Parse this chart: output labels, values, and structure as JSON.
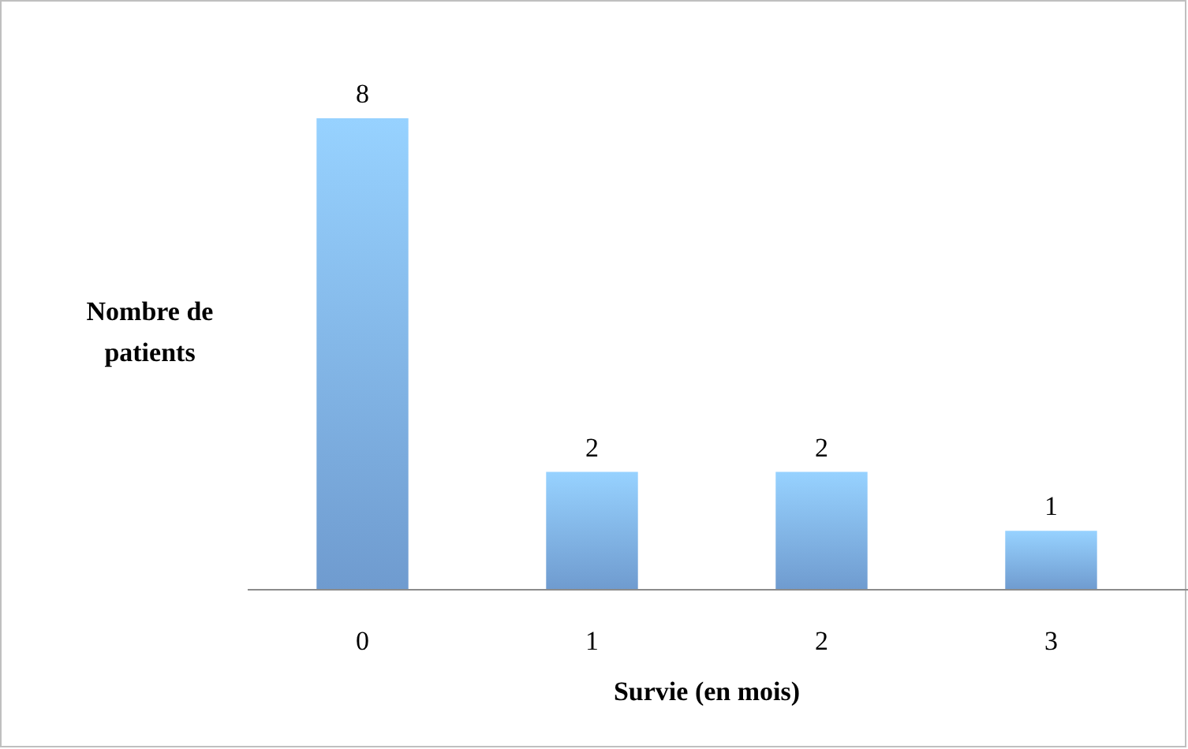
{
  "chart_data": {
    "type": "bar",
    "xlabel": "Survie (en mois)",
    "ylabel": "Nombre de patients",
    "categories": [
      "0",
      "1",
      "2",
      "3"
    ],
    "values": [
      8,
      2,
      2,
      1
    ],
    "color": "#7eb0ea",
    "data_labels": true
  }
}
